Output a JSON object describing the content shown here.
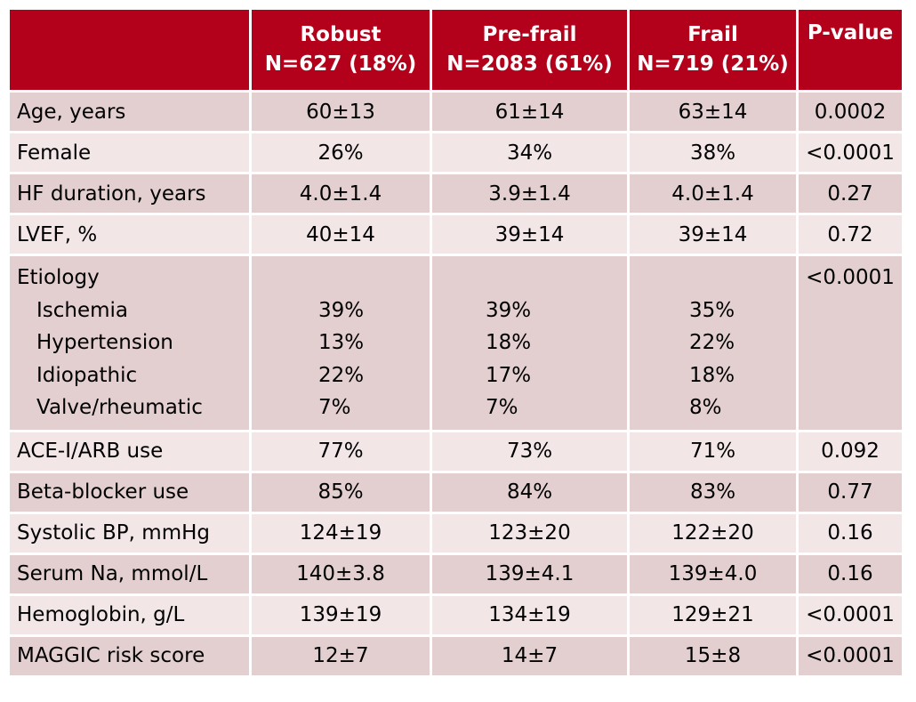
{
  "header": {
    "columns": [
      {
        "name": "Robust",
        "n": "N=627 (18%)"
      },
      {
        "name": "Pre-frail",
        "n": "N=2083 (61%)"
      },
      {
        "name": "Frail",
        "n": "N=719 (21%)"
      }
    ],
    "pvalue": "P-value"
  },
  "rows": [
    {
      "label": "Age, years",
      "robust": "60±13",
      "prefrail": "61±14",
      "frail": "63±14",
      "p": "0.0002"
    },
    {
      "label": "Female",
      "robust": "26%",
      "prefrail": "34%",
      "frail": "38%",
      "p": "<0.0001"
    },
    {
      "label": "HF duration, years",
      "robust": "4.0±1.4",
      "prefrail": "3.9±1.4",
      "frail": "4.0±1.4",
      "p": "0.27"
    },
    {
      "label": "LVEF, %",
      "robust": "40±14",
      "prefrail": "39±14",
      "frail": "39±14",
      "p": "0.72"
    }
  ],
  "etiology": {
    "label": "Etiology",
    "p": "<0.0001",
    "items": [
      {
        "label": "Ischemia",
        "robust": "39%",
        "prefrail": "39%",
        "frail": "35%"
      },
      {
        "label": "Hypertension",
        "robust": "13%",
        "prefrail": "18%",
        "frail": "22%"
      },
      {
        "label": "Idiopathic",
        "robust": "22%",
        "prefrail": "17%",
        "frail": "18%"
      },
      {
        "label": "Valve/rheumatic",
        "robust": "7%",
        "prefrail": "7%",
        "frail": "8%"
      }
    ]
  },
  "rows2": [
    {
      "label": "ACE-I/ARB use",
      "robust": "77%",
      "prefrail": "73%",
      "frail": "71%",
      "p": "0.092"
    },
    {
      "label": "Beta-blocker use",
      "robust": "85%",
      "prefrail": "84%",
      "frail": "83%",
      "p": "0.77"
    },
    {
      "label": "Systolic BP, mmHg",
      "robust": "124±19",
      "prefrail": "123±20",
      "frail": "122±20",
      "p": "0.16"
    },
    {
      "label": "Serum Na, mmol/L",
      "robust": "140±3.8",
      "prefrail": "139±4.1",
      "frail": "139±4.0",
      "p": "0.16"
    },
    {
      "label": "Hemoglobin, g/L",
      "robust": "139±19",
      "prefrail": "134±19",
      "frail": "129±21",
      "p": "<0.0001"
    },
    {
      "label": "MAGGIC risk score",
      "robust": "12±7",
      "prefrail": "14±7",
      "frail": "15±8",
      "p": "<0.0001"
    }
  ],
  "colors": {
    "header_bg": "#b3001b",
    "row_dark": "#e4cfd0",
    "row_light": "#f2e6e6"
  }
}
